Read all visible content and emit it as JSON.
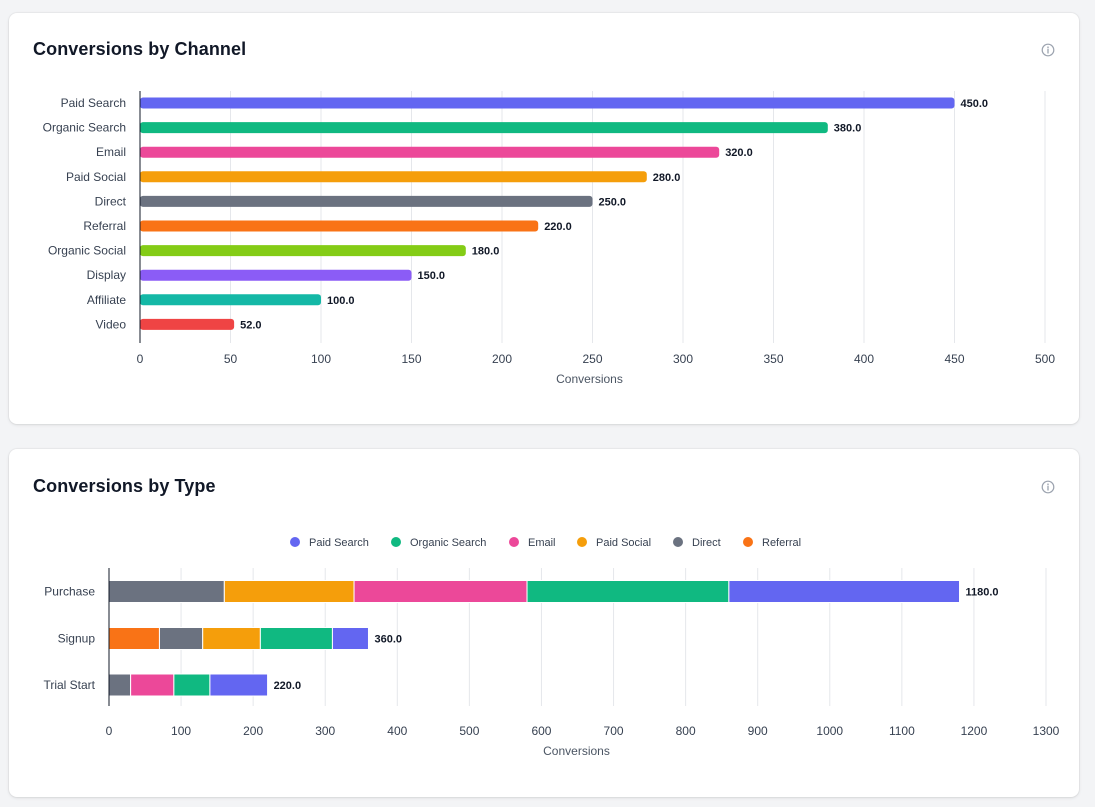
{
  "cards": [
    {
      "title": "Conversions by Channel",
      "icon": "info-icon"
    },
    {
      "title": "Conversions by Type",
      "icon": "info-icon"
    }
  ],
  "chart_data": [
    {
      "type": "bar",
      "orientation": "horizontal",
      "title": "Conversions by Channel",
      "xlabel": "Conversions",
      "ylabel": "",
      "xlim": [
        0,
        500
      ],
      "xticks": [
        0,
        50,
        100,
        150,
        200,
        250,
        300,
        350,
        400,
        450,
        500
      ],
      "grid": true,
      "categories": [
        "Paid Search",
        "Organic Search",
        "Email",
        "Paid Social",
        "Direct",
        "Referral",
        "Organic Social",
        "Display",
        "Affiliate",
        "Video"
      ],
      "values": [
        450,
        380,
        320,
        280,
        250,
        220,
        180,
        150,
        100,
        52
      ],
      "value_labels": [
        "450.0",
        "380.0",
        "320.0",
        "280.0",
        "250.0",
        "220.0",
        "180.0",
        "150.0",
        "100.0",
        "52.0"
      ],
      "colors": [
        "#6366f1",
        "#10b981",
        "#ec4899",
        "#f59e0b",
        "#6b7280",
        "#f97316",
        "#84cc16",
        "#8b5cf6",
        "#14b8a6",
        "#ef4444"
      ]
    },
    {
      "type": "bar",
      "orientation": "horizontal",
      "stacked": true,
      "title": "Conversions by Type",
      "xlabel": "Conversions",
      "ylabel": "",
      "xlim": [
        0,
        1300
      ],
      "xticks": [
        0,
        100,
        200,
        300,
        400,
        500,
        600,
        700,
        800,
        900,
        1000,
        1100,
        1200,
        1300
      ],
      "grid": true,
      "legend_position": "top-center",
      "categories": [
        "Purchase",
        "Signup",
        "Trial Start"
      ],
      "totals": [
        "1180.0",
        "360.0",
        "220.0"
      ],
      "stack_order": [
        "Referral",
        "Direct",
        "Paid Social",
        "Email",
        "Organic Search",
        "Paid Search"
      ],
      "series": [
        {
          "name": "Paid Search",
          "color": "#6366f1",
          "values": [
            320,
            50,
            80
          ]
        },
        {
          "name": "Organic Search",
          "color": "#10b981",
          "values": [
            280,
            100,
            50
          ]
        },
        {
          "name": "Email",
          "color": "#ec4899",
          "values": [
            240,
            0,
            60
          ]
        },
        {
          "name": "Paid Social",
          "color": "#f59e0b",
          "values": [
            180,
            80,
            0
          ]
        },
        {
          "name": "Direct",
          "color": "#6b7280",
          "values": [
            160,
            60,
            30
          ]
        },
        {
          "name": "Referral",
          "color": "#f97316",
          "values": [
            0,
            70,
            0
          ]
        }
      ]
    }
  ]
}
